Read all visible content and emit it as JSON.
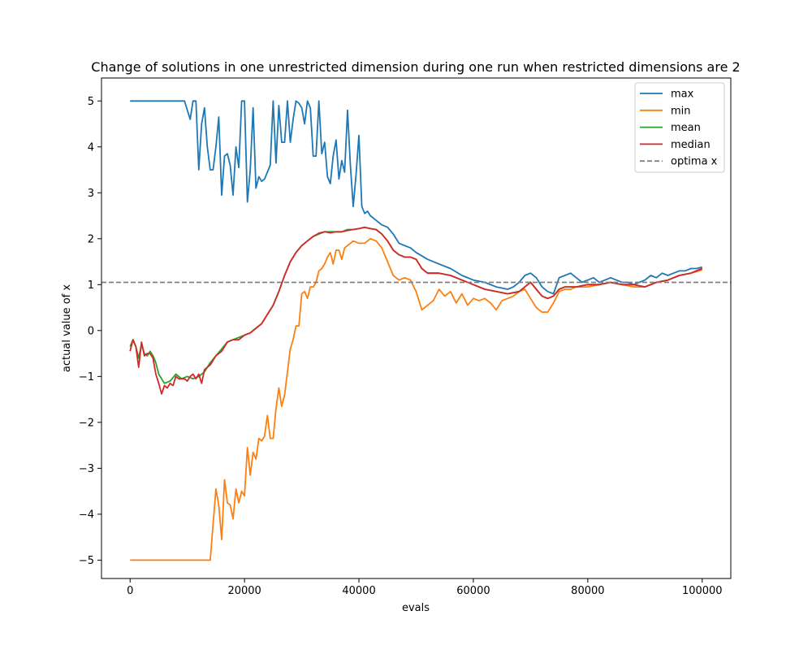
{
  "chart_data": {
    "type": "line",
    "title": "Change of solutions in one unrestricted dimension during one run when restricted dimensions are 2",
    "xlabel": "evals",
    "ylabel": "actual value of x",
    "xlim": [
      -5000,
      105000
    ],
    "ylim": [
      -5.4,
      5.5
    ],
    "xticks": [
      0,
      20000,
      40000,
      60000,
      80000,
      100000
    ],
    "xtick_labels": [
      "0",
      "20000",
      "40000",
      "60000",
      "80000",
      "100000"
    ],
    "yticks": [
      -5,
      -4,
      -3,
      -2,
      -1,
      0,
      1,
      2,
      3,
      4,
      5
    ],
    "ytick_labels": [
      "−5",
      "−4",
      "−3",
      "−2",
      "−1",
      "0",
      "1",
      "2",
      "3",
      "4",
      "5"
    ],
    "grid": false,
    "legend_position": "top-right",
    "reference_line": {
      "name": "optima x",
      "y": 1.05,
      "color": "#808080",
      "style": "dashed"
    },
    "series": [
      {
        "name": "max",
        "color": "#1f77b4",
        "x": [
          0,
          2000,
          4000,
          6000,
          8000,
          9500,
          10500,
          11000,
          11500,
          12000,
          12500,
          13000,
          13500,
          14000,
          14500,
          15000,
          15500,
          16000,
          16500,
          17000,
          17500,
          18000,
          18500,
          19000,
          19500,
          20000,
          20500,
          21000,
          21500,
          22000,
          22500,
          23000,
          23500,
          24000,
          24500,
          25000,
          25500,
          26000,
          26500,
          27000,
          27500,
          28000,
          28500,
          29000,
          29500,
          30000,
          30500,
          31000,
          31500,
          32000,
          32500,
          33000,
          33500,
          34000,
          34500,
          35000,
          35500,
          36000,
          36500,
          37000,
          37500,
          38000,
          38500,
          39000,
          39500,
          40000,
          40500,
          41000,
          41500,
          42000,
          43000,
          44000,
          45000,
          46000,
          47000,
          48000,
          49000,
          50000,
          52000,
          54000,
          56000,
          58000,
          60000,
          62000,
          64000,
          66000,
          67000,
          68000,
          69000,
          70000,
          71000,
          72000,
          73000,
          74000,
          75000,
          76000,
          77000,
          78000,
          79000,
          80000,
          81000,
          82000,
          83000,
          84000,
          85000,
          86000,
          87000,
          88000,
          89000,
          90000,
          91000,
          92000,
          93000,
          94000,
          95000,
          96000,
          97000,
          98000,
          99000,
          100000
        ],
        "y": [
          5,
          5,
          5,
          5,
          5,
          5,
          4.6,
          5,
          5,
          3.5,
          4.5,
          4.85,
          4,
          3.5,
          3.5,
          4,
          4.65,
          2.95,
          3.8,
          3.85,
          3.6,
          2.95,
          4,
          3.55,
          5,
          5,
          2.8,
          3.5,
          4.85,
          3.1,
          3.35,
          3.25,
          3.3,
          3.45,
          3.6,
          5,
          3.65,
          4.9,
          4.1,
          4.1,
          5,
          4.1,
          4.6,
          5,
          4.95,
          4.85,
          4.5,
          5,
          4.85,
          3.8,
          3.8,
          5,
          3.85,
          4.1,
          3.35,
          3.2,
          3.8,
          4.15,
          3.3,
          3.7,
          3.45,
          4.8,
          3.6,
          2.7,
          3.4,
          4.25,
          2.7,
          2.55,
          2.6,
          2.5,
          2.4,
          2.3,
          2.25,
          2.1,
          1.9,
          1.85,
          1.8,
          1.7,
          1.55,
          1.45,
          1.35,
          1.2,
          1.1,
          1.05,
          0.95,
          0.9,
          0.95,
          1.05,
          1.2,
          1.25,
          1.15,
          0.95,
          0.85,
          0.8,
          1.15,
          1.2,
          1.25,
          1.15,
          1.05,
          1.1,
          1.15,
          1.05,
          1.1,
          1.15,
          1.1,
          1.05,
          1.05,
          1.0,
          1.05,
          1.1,
          1.2,
          1.15,
          1.25,
          1.2,
          1.25,
          1.3,
          1.3,
          1.35,
          1.35,
          1.38
        ]
      },
      {
        "name": "min",
        "color": "#ff7f0e",
        "x": [
          0,
          2000,
          4000,
          6000,
          8000,
          10000,
          12000,
          14000,
          15000,
          15500,
          16000,
          16500,
          17000,
          17500,
          18000,
          18500,
          19000,
          19500,
          20000,
          20500,
          21000,
          21500,
          22000,
          22500,
          23000,
          23500,
          24000,
          24500,
          25000,
          25500,
          26000,
          26500,
          27000,
          27500,
          28000,
          28500,
          29000,
          29500,
          30000,
          30500,
          31000,
          31500,
          32000,
          32500,
          33000,
          33500,
          34000,
          34500,
          35000,
          35500,
          36000,
          36500,
          37000,
          37500,
          38000,
          38500,
          39000,
          40000,
          41000,
          42000,
          43000,
          44000,
          45000,
          46000,
          47000,
          48000,
          49000,
          50000,
          51000,
          52000,
          53000,
          54000,
          55000,
          56000,
          57000,
          58000,
          59000,
          60000,
          61000,
          62000,
          63000,
          64000,
          65000,
          66000,
          67000,
          68000,
          69000,
          70000,
          71000,
          72000,
          73000,
          74000,
          75000,
          76000,
          77000,
          78000,
          80000,
          82000,
          84000,
          86000,
          88000,
          90000,
          92000,
          94000,
          96000,
          98000,
          100000
        ],
        "y": [
          -5,
          -5,
          -5,
          -5,
          -5,
          -5,
          -5,
          -5,
          -3.45,
          -3.8,
          -4.55,
          -3.25,
          -3.75,
          -3.8,
          -4.1,
          -3.45,
          -3.75,
          -3.5,
          -3.6,
          -2.55,
          -3.15,
          -2.65,
          -2.8,
          -2.35,
          -2.4,
          -2.3,
          -1.85,
          -2.35,
          -2.35,
          -1.7,
          -1.25,
          -1.65,
          -1.4,
          -0.9,
          -0.4,
          -0.2,
          0.1,
          0.1,
          0.8,
          0.85,
          0.7,
          0.95,
          0.95,
          1.05,
          1.3,
          1.35,
          1.45,
          1.6,
          1.7,
          1.45,
          1.75,
          1.75,
          1.55,
          1.8,
          1.85,
          1.9,
          1.95,
          1.9,
          1.9,
          2.0,
          1.95,
          1.8,
          1.5,
          1.2,
          1.1,
          1.15,
          1.1,
          0.85,
          0.45,
          0.55,
          0.65,
          0.9,
          0.75,
          0.85,
          0.6,
          0.8,
          0.55,
          0.7,
          0.65,
          0.7,
          0.6,
          0.45,
          0.65,
          0.7,
          0.75,
          0.85,
          0.9,
          0.7,
          0.5,
          0.4,
          0.4,
          0.6,
          0.85,
          0.9,
          0.9,
          0.95,
          0.95,
          1.0,
          1.05,
          1.0,
          0.95,
          0.95,
          1.05,
          1.1,
          1.2,
          1.25,
          1.32
        ]
      },
      {
        "name": "mean",
        "color": "#2ca02c",
        "x": [
          0,
          500,
          1000,
          1500,
          2000,
          2500,
          3000,
          3500,
          4000,
          4500,
          5000,
          6000,
          7000,
          8000,
          9000,
          10000,
          11000,
          12000,
          13000,
          14000,
          15000,
          16000,
          17000,
          18000,
          19000,
          20000,
          21000,
          22000,
          23000,
          24000,
          25000,
          26000,
          27000,
          28000,
          29000,
          30000,
          31000,
          32000,
          33000,
          34000,
          35000,
          36000,
          37000,
          38000,
          39000,
          40000,
          41000,
          42000,
          43000,
          44000,
          45000,
          46000,
          47000,
          48000,
          49000,
          50000,
          51000,
          52000,
          54000,
          56000,
          58000,
          60000,
          62000,
          64000,
          66000,
          68000,
          69000,
          70000,
          71000,
          72000,
          73000,
          74000,
          75000,
          76000,
          78000,
          80000,
          82000,
          84000,
          86000,
          88000,
          90000,
          92000,
          94000,
          96000,
          98000,
          100000
        ],
        "y": [
          -0.35,
          -0.2,
          -0.35,
          -0.6,
          -0.3,
          -0.5,
          -0.55,
          -0.45,
          -0.55,
          -0.7,
          -0.95,
          -1.15,
          -1.1,
          -0.95,
          -1.05,
          -1.0,
          -1.05,
          -1.0,
          -0.9,
          -0.7,
          -0.55,
          -0.4,
          -0.25,
          -0.2,
          -0.15,
          -0.1,
          -0.05,
          0.05,
          0.15,
          0.35,
          0.55,
          0.85,
          1.2,
          1.5,
          1.7,
          1.85,
          1.95,
          2.05,
          2.1,
          2.15,
          2.15,
          2.15,
          2.15,
          2.2,
          2.2,
          2.22,
          2.25,
          2.22,
          2.2,
          2.1,
          1.95,
          1.75,
          1.65,
          1.6,
          1.6,
          1.55,
          1.35,
          1.25,
          1.25,
          1.2,
          1.1,
          1.0,
          0.9,
          0.85,
          0.8,
          0.85,
          0.95,
          1.05,
          0.9,
          0.75,
          0.7,
          0.75,
          0.9,
          0.95,
          0.95,
          1.0,
          1.0,
          1.05,
          1.0,
          1.0,
          0.95,
          1.05,
          1.1,
          1.2,
          1.25,
          1.35
        ]
      },
      {
        "name": "median",
        "color": "#d62728",
        "x": [
          0,
          500,
          1000,
          1500,
          2000,
          2500,
          3000,
          3500,
          4000,
          4500,
          5000,
          5500,
          6000,
          6500,
          7000,
          7500,
          8000,
          8500,
          9000,
          9500,
          10000,
          10500,
          11000,
          11500,
          12000,
          12500,
          13000,
          14000,
          15000,
          16000,
          17000,
          18000,
          19000,
          20000,
          21000,
          22000,
          23000,
          24000,
          25000,
          26000,
          27000,
          28000,
          29000,
          30000,
          31000,
          32000,
          33000,
          34000,
          35000,
          36000,
          37000,
          38000,
          39000,
          40000,
          41000,
          42000,
          43000,
          44000,
          45000,
          46000,
          47000,
          48000,
          49000,
          50000,
          51000,
          52000,
          54000,
          56000,
          58000,
          60000,
          62000,
          64000,
          66000,
          68000,
          69000,
          70000,
          71000,
          72000,
          73000,
          74000,
          75000,
          76000,
          78000,
          80000,
          82000,
          84000,
          86000,
          88000,
          90000,
          92000,
          94000,
          96000,
          98000,
          100000
        ],
        "y": [
          -0.45,
          -0.2,
          -0.35,
          -0.8,
          -0.25,
          -0.55,
          -0.5,
          -0.5,
          -0.6,
          -0.95,
          -1.15,
          -1.38,
          -1.2,
          -1.25,
          -1.15,
          -1.2,
          -1.0,
          -1.05,
          -1.05,
          -1.05,
          -1.1,
          -1.0,
          -0.95,
          -1.05,
          -0.95,
          -1.15,
          -0.85,
          -0.75,
          -0.55,
          -0.45,
          -0.25,
          -0.2,
          -0.2,
          -0.1,
          -0.05,
          0.05,
          0.15,
          0.35,
          0.55,
          0.85,
          1.2,
          1.5,
          1.7,
          1.85,
          1.95,
          2.05,
          2.12,
          2.15,
          2.13,
          2.15,
          2.15,
          2.18,
          2.2,
          2.22,
          2.25,
          2.22,
          2.2,
          2.1,
          1.95,
          1.75,
          1.65,
          1.6,
          1.6,
          1.55,
          1.35,
          1.25,
          1.25,
          1.2,
          1.1,
          1.0,
          0.9,
          0.85,
          0.8,
          0.85,
          0.95,
          1.05,
          0.9,
          0.75,
          0.7,
          0.75,
          0.9,
          0.95,
          0.95,
          1.0,
          1.0,
          1.05,
          1.0,
          1.0,
          0.95,
          1.05,
          1.1,
          1.2,
          1.25,
          1.35
        ]
      }
    ]
  }
}
